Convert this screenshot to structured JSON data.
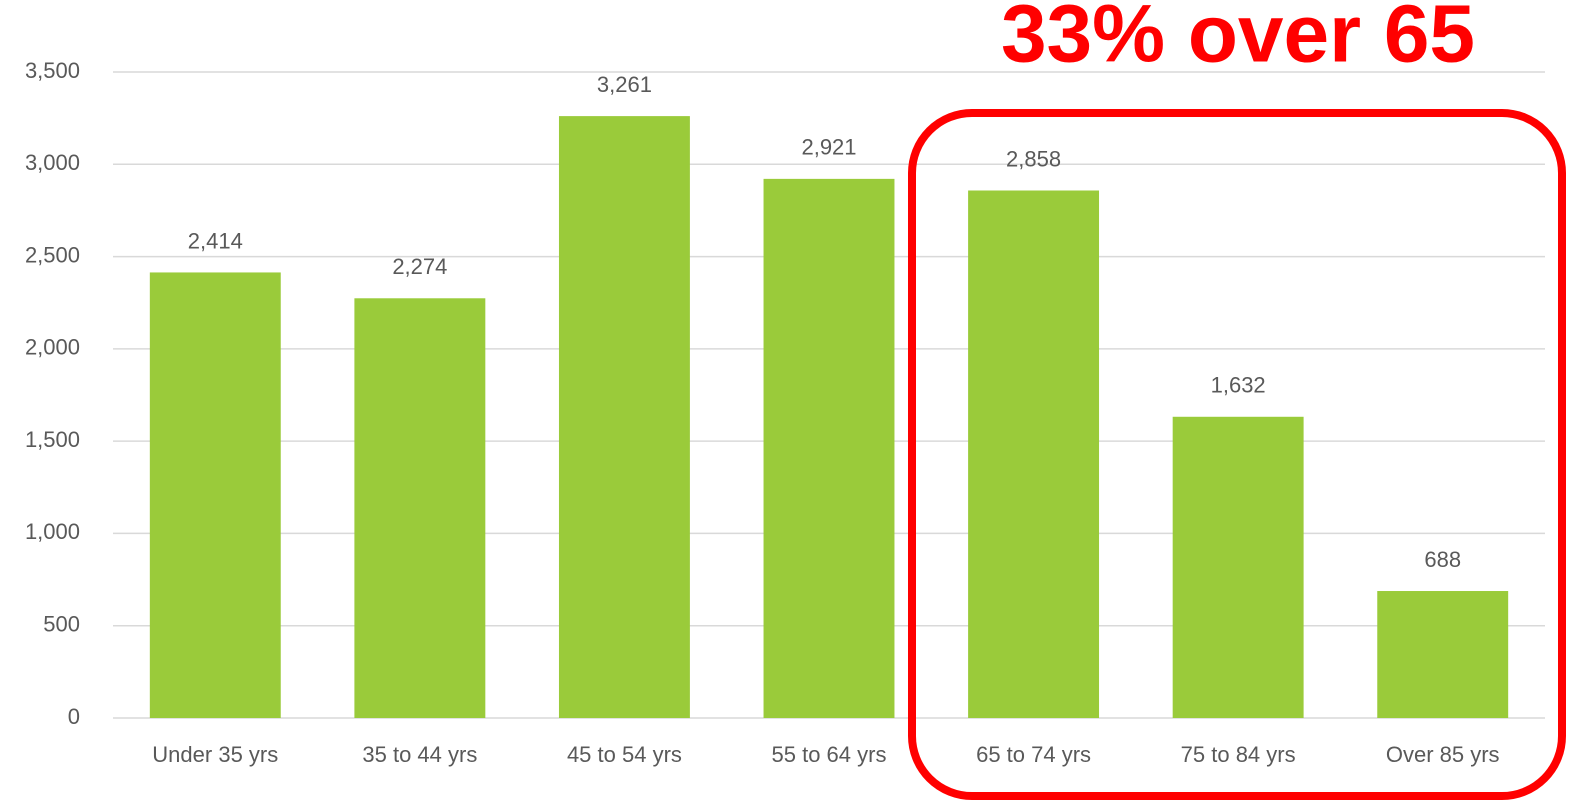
{
  "chart_data": {
    "type": "bar",
    "annotation": "33% over 65",
    "categories": [
      "Under 35 yrs",
      "35 to 44 yrs",
      "45 to 54 yrs",
      "55 to 64 yrs",
      "65 to 74 yrs",
      "75 to 84 yrs",
      "Over 85 yrs"
    ],
    "values": [
      2414,
      2274,
      3261,
      2921,
      2858,
      1632,
      688
    ],
    "value_labels": [
      "2,414",
      "2,274",
      "3,261",
      "2,921",
      "2,858",
      "1,632",
      "688"
    ],
    "color": "#9acb3a",
    "highlight_color": "#ff0000",
    "ylim": [
      0,
      3500
    ],
    "yticks": [
      0,
      500,
      {
        "value": 1000,
        "label": "1,000"
      },
      {
        "value": 1500,
        "label": "1,500"
      },
      {
        "value": 2000,
        "label": "2,000"
      },
      {
        "value": 2500,
        "label": "2,500"
      },
      {
        "value": 3000,
        "label": "3,000"
      },
      {
        "value": 3500,
        "label": "3,500"
      }
    ],
    "grid": true
  }
}
